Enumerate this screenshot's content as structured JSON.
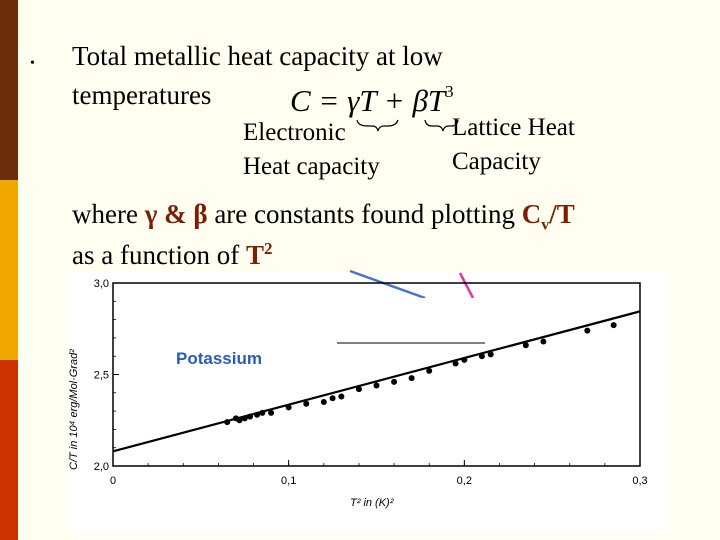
{
  "bullet": {
    "symbol": "•",
    "line1": "Total  metallic heat capacity at low",
    "line2": "temperatures"
  },
  "equation": {
    "lhs": "C = ",
    "gamma_term": "γT",
    "plus": " + ",
    "beta_term": "βT",
    "exponent": "3"
  },
  "annotations": {
    "electronic_line1": "Electronic",
    "electronic_line2": "Heat capacity",
    "lattice_line1": "Lattice Heat",
    "lattice_line2": "Capacity"
  },
  "explanation": {
    "part1": "where ",
    "symbols": "γ & β",
    "part2": " are constants found plotting ",
    "cv_c": "C",
    "cv_sub": "v",
    "cv_t": "/T",
    "line2_a": "as a function of ",
    "t_base": "T",
    "t_exp": "2"
  },
  "chart_data": {
    "type": "scatter",
    "legend_label": "Potassium",
    "ylabel": "C/T  in 10⁴ erg/Mol·Grad²",
    "xlabel": "T² in  (K)²",
    "xlim": [
      0,
      0.3
    ],
    "ylim": [
      2.0,
      3.0
    ],
    "x_ticks": [
      "0",
      "0,1",
      "0,2",
      "0,3"
    ],
    "y_ticks": [
      "2,0",
      "2,5",
      "3,0"
    ],
    "fit_line": {
      "intercept": 2.08,
      "slope": 2.55
    },
    "points": [
      [
        0.065,
        2.24
      ],
      [
        0.07,
        2.26
      ],
      [
        0.072,
        2.25
      ],
      [
        0.075,
        2.26
      ],
      [
        0.078,
        2.27
      ],
      [
        0.082,
        2.28
      ],
      [
        0.085,
        2.29
      ],
      [
        0.09,
        2.29
      ],
      [
        0.1,
        2.32
      ],
      [
        0.11,
        2.34
      ],
      [
        0.12,
        2.35
      ],
      [
        0.125,
        2.37
      ],
      [
        0.13,
        2.38
      ],
      [
        0.14,
        2.42
      ],
      [
        0.15,
        2.44
      ],
      [
        0.16,
        2.46
      ],
      [
        0.17,
        2.48
      ],
      [
        0.18,
        2.52
      ],
      [
        0.195,
        2.56
      ],
      [
        0.2,
        2.58
      ],
      [
        0.21,
        2.6
      ],
      [
        0.215,
        2.61
      ],
      [
        0.235,
        2.66
      ],
      [
        0.245,
        2.68
      ],
      [
        0.27,
        2.74
      ],
      [
        0.285,
        2.77
      ]
    ]
  }
}
